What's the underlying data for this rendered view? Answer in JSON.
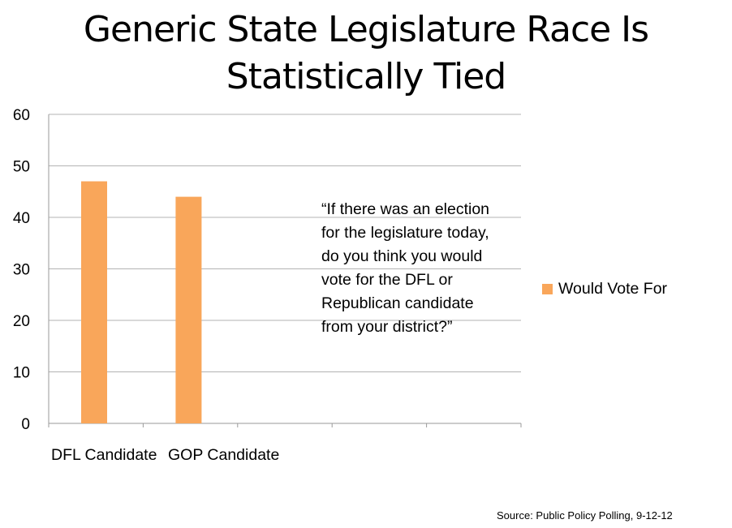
{
  "title_lines": [
    "Generic State Legislature Race Is",
    "Statistically Tied"
  ],
  "annotation": "“If there was an election for the legislature today, do you think you would vote for the DFL or Republican candidate from your district?”",
  "source": "Source:  Public Policy Polling, 9-12-12",
  "colors": {
    "bar": "#f9a65a",
    "grid": "#b3b3b3",
    "axis": "#9a9a9a"
  },
  "chart_data": {
    "type": "bar",
    "title": "Generic State Legislature Race Is Statistically Tied",
    "categories": [
      "DFL Candidate",
      "GOP Candidate",
      "",
      "",
      ""
    ],
    "series": [
      {
        "name": "Would Vote For",
        "values": [
          47,
          44,
          null,
          null,
          null
        ]
      }
    ],
    "ylim": [
      0,
      60
    ],
    "yticks": [
      0,
      10,
      20,
      30,
      40,
      50,
      60
    ],
    "xlabel": "",
    "ylabel": "",
    "grid": true,
    "legend_position": "right"
  }
}
